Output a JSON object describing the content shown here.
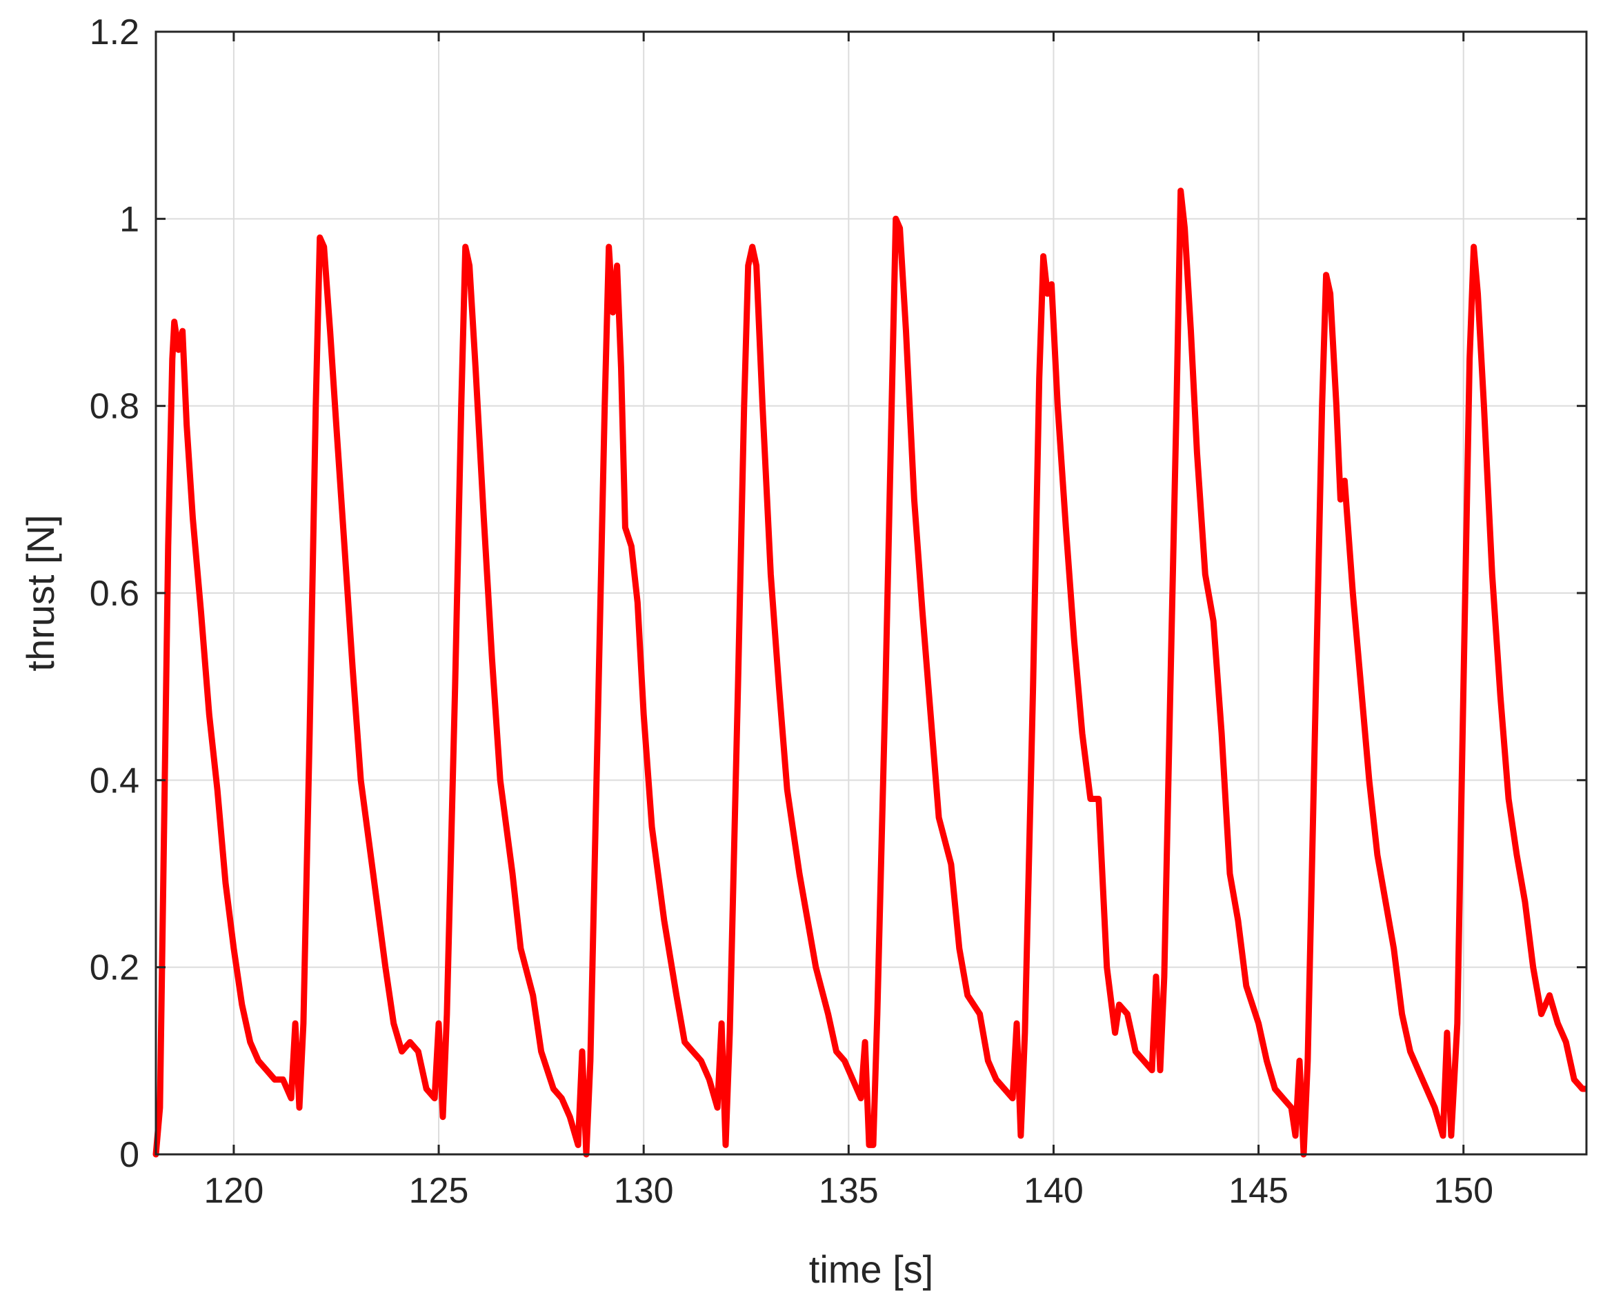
{
  "colors": {
    "series": "#ff0000",
    "grid": "#dcdcdc",
    "axis": "#262626",
    "background": "#ffffff"
  },
  "chart_data": {
    "type": "line",
    "title": "",
    "xlabel": "time [s]",
    "ylabel": "thrust [N]",
    "xlim": [
      118.1,
      153
    ],
    "ylim": [
      0,
      1.2
    ],
    "grid": true,
    "legend": "none",
    "x_ticks": [
      {
        "value": 120,
        "label": "120"
      },
      {
        "value": 125,
        "label": "125"
      },
      {
        "value": 130,
        "label": "130"
      },
      {
        "value": 135,
        "label": "135"
      },
      {
        "value": 140,
        "label": "140"
      },
      {
        "value": 145,
        "label": "145"
      },
      {
        "value": 150,
        "label": "150"
      }
    ],
    "y_ticks": [
      {
        "value": 0,
        "label": "0"
      },
      {
        "value": 0.2,
        "label": "0.2"
      },
      {
        "value": 0.4,
        "label": "0.4"
      },
      {
        "value": 0.6,
        "label": "0.6"
      },
      {
        "value": 0.8,
        "label": "0.8"
      },
      {
        "value": 1.0,
        "label": "1"
      },
      {
        "value": 1.2,
        "label": "1.2"
      }
    ],
    "series": [
      {
        "color": "#ff0000",
        "points": [
          [
            118.1,
            0.0
          ],
          [
            118.2,
            0.05
          ],
          [
            118.3,
            0.35
          ],
          [
            118.4,
            0.65
          ],
          [
            118.5,
            0.85
          ],
          [
            118.55,
            0.89
          ],
          [
            118.65,
            0.86
          ],
          [
            118.75,
            0.88
          ],
          [
            118.85,
            0.78
          ],
          [
            119.0,
            0.68
          ],
          [
            119.2,
            0.58
          ],
          [
            119.4,
            0.47
          ],
          [
            119.6,
            0.39
          ],
          [
            119.8,
            0.29
          ],
          [
            120.0,
            0.22
          ],
          [
            120.2,
            0.16
          ],
          [
            120.4,
            0.12
          ],
          [
            120.6,
            0.1
          ],
          [
            120.8,
            0.09
          ],
          [
            121.0,
            0.08
          ],
          [
            121.2,
            0.08
          ],
          [
            121.4,
            0.06
          ],
          [
            121.5,
            0.14
          ],
          [
            121.6,
            0.05
          ],
          [
            121.7,
            0.14
          ],
          [
            121.85,
            0.45
          ],
          [
            122.0,
            0.8
          ],
          [
            122.1,
            0.98
          ],
          [
            122.2,
            0.97
          ],
          [
            122.35,
            0.88
          ],
          [
            122.5,
            0.78
          ],
          [
            122.7,
            0.65
          ],
          [
            122.9,
            0.52
          ],
          [
            123.1,
            0.4
          ],
          [
            123.4,
            0.3
          ],
          [
            123.7,
            0.2
          ],
          [
            123.9,
            0.14
          ],
          [
            124.1,
            0.11
          ],
          [
            124.3,
            0.12
          ],
          [
            124.5,
            0.11
          ],
          [
            124.7,
            0.07
          ],
          [
            124.9,
            0.06
          ],
          [
            125.0,
            0.14
          ],
          [
            125.1,
            0.04
          ],
          [
            125.2,
            0.15
          ],
          [
            125.4,
            0.5
          ],
          [
            125.55,
            0.8
          ],
          [
            125.65,
            0.97
          ],
          [
            125.75,
            0.95
          ],
          [
            125.9,
            0.84
          ],
          [
            126.1,
            0.68
          ],
          [
            126.3,
            0.53
          ],
          [
            126.5,
            0.4
          ],
          [
            126.8,
            0.3
          ],
          [
            127.0,
            0.22
          ],
          [
            127.3,
            0.17
          ],
          [
            127.5,
            0.11
          ],
          [
            127.8,
            0.07
          ],
          [
            128.0,
            0.06
          ],
          [
            128.2,
            0.04
          ],
          [
            128.4,
            0.01
          ],
          [
            128.5,
            0.11
          ],
          [
            128.6,
            0.0
          ],
          [
            128.7,
            0.1
          ],
          [
            128.9,
            0.5
          ],
          [
            129.05,
            0.8
          ],
          [
            129.15,
            0.97
          ],
          [
            129.25,
            0.9
          ],
          [
            129.35,
            0.95
          ],
          [
            129.45,
            0.84
          ],
          [
            129.55,
            0.67
          ],
          [
            129.7,
            0.65
          ],
          [
            129.85,
            0.59
          ],
          [
            130.0,
            0.47
          ],
          [
            130.2,
            0.35
          ],
          [
            130.5,
            0.25
          ],
          [
            130.8,
            0.17
          ],
          [
            131.0,
            0.12
          ],
          [
            131.2,
            0.11
          ],
          [
            131.4,
            0.1
          ],
          [
            131.6,
            0.08
          ],
          [
            131.8,
            0.05
          ],
          [
            131.9,
            0.14
          ],
          [
            132.0,
            0.01
          ],
          [
            132.1,
            0.13
          ],
          [
            132.3,
            0.5
          ],
          [
            132.45,
            0.8
          ],
          [
            132.55,
            0.95
          ],
          [
            132.65,
            0.97
          ],
          [
            132.75,
            0.95
          ],
          [
            132.9,
            0.8
          ],
          [
            133.1,
            0.62
          ],
          [
            133.3,
            0.5
          ],
          [
            133.5,
            0.39
          ],
          [
            133.8,
            0.3
          ],
          [
            134.0,
            0.25
          ],
          [
            134.2,
            0.2
          ],
          [
            134.5,
            0.15
          ],
          [
            134.7,
            0.11
          ],
          [
            134.9,
            0.1
          ],
          [
            135.1,
            0.08
          ],
          [
            135.3,
            0.06
          ],
          [
            135.4,
            0.12
          ],
          [
            135.5,
            0.01
          ],
          [
            135.6,
            0.01
          ],
          [
            135.7,
            0.15
          ],
          [
            135.9,
            0.5
          ],
          [
            136.05,
            0.8
          ],
          [
            136.15,
            1.0
          ],
          [
            136.25,
            0.99
          ],
          [
            136.4,
            0.88
          ],
          [
            136.6,
            0.7
          ],
          [
            136.8,
            0.58
          ],
          [
            137.0,
            0.47
          ],
          [
            137.2,
            0.36
          ],
          [
            137.5,
            0.31
          ],
          [
            137.7,
            0.22
          ],
          [
            137.9,
            0.17
          ],
          [
            138.2,
            0.15
          ],
          [
            138.4,
            0.1
          ],
          [
            138.6,
            0.08
          ],
          [
            138.8,
            0.07
          ],
          [
            139.0,
            0.06
          ],
          [
            139.1,
            0.14
          ],
          [
            139.2,
            0.02
          ],
          [
            139.3,
            0.13
          ],
          [
            139.5,
            0.5
          ],
          [
            139.65,
            0.83
          ],
          [
            139.75,
            0.96
          ],
          [
            139.85,
            0.92
          ],
          [
            139.95,
            0.93
          ],
          [
            140.1,
            0.8
          ],
          [
            140.3,
            0.67
          ],
          [
            140.5,
            0.55
          ],
          [
            140.7,
            0.45
          ],
          [
            140.9,
            0.38
          ],
          [
            141.1,
            0.38
          ],
          [
            141.3,
            0.2
          ],
          [
            141.5,
            0.13
          ],
          [
            141.6,
            0.16
          ],
          [
            141.8,
            0.15
          ],
          [
            142.0,
            0.11
          ],
          [
            142.2,
            0.1
          ],
          [
            142.4,
            0.09
          ],
          [
            142.5,
            0.19
          ],
          [
            142.6,
            0.09
          ],
          [
            142.7,
            0.19
          ],
          [
            142.85,
            0.5
          ],
          [
            143.0,
            0.8
          ],
          [
            143.1,
            1.03
          ],
          [
            143.2,
            0.99
          ],
          [
            143.35,
            0.88
          ],
          [
            143.5,
            0.75
          ],
          [
            143.7,
            0.62
          ],
          [
            143.9,
            0.57
          ],
          [
            144.1,
            0.45
          ],
          [
            144.3,
            0.3
          ],
          [
            144.5,
            0.25
          ],
          [
            144.7,
            0.18
          ],
          [
            145.0,
            0.14
          ],
          [
            145.2,
            0.1
          ],
          [
            145.4,
            0.07
          ],
          [
            145.6,
            0.06
          ],
          [
            145.8,
            0.05
          ],
          [
            145.9,
            0.02
          ],
          [
            146.0,
            0.1
          ],
          [
            146.1,
            0.0
          ],
          [
            146.2,
            0.1
          ],
          [
            146.4,
            0.5
          ],
          [
            146.55,
            0.8
          ],
          [
            146.65,
            0.94
          ],
          [
            146.75,
            0.92
          ],
          [
            146.9,
            0.8
          ],
          [
            147.0,
            0.7
          ],
          [
            147.1,
            0.72
          ],
          [
            147.3,
            0.6
          ],
          [
            147.5,
            0.5
          ],
          [
            147.7,
            0.4
          ],
          [
            147.9,
            0.32
          ],
          [
            148.1,
            0.27
          ],
          [
            148.3,
            0.22
          ],
          [
            148.5,
            0.15
          ],
          [
            148.7,
            0.11
          ],
          [
            148.9,
            0.09
          ],
          [
            149.1,
            0.07
          ],
          [
            149.3,
            0.05
          ],
          [
            149.5,
            0.02
          ],
          [
            149.6,
            0.13
          ],
          [
            149.7,
            0.02
          ],
          [
            149.85,
            0.14
          ],
          [
            150.0,
            0.5
          ],
          [
            150.15,
            0.85
          ],
          [
            150.25,
            0.97
          ],
          [
            150.35,
            0.92
          ],
          [
            150.5,
            0.8
          ],
          [
            150.7,
            0.62
          ],
          [
            150.9,
            0.49
          ],
          [
            151.1,
            0.38
          ],
          [
            151.3,
            0.32
          ],
          [
            151.5,
            0.27
          ],
          [
            151.7,
            0.2
          ],
          [
            151.9,
            0.15
          ],
          [
            152.1,
            0.17
          ],
          [
            152.3,
            0.14
          ],
          [
            152.5,
            0.12
          ],
          [
            152.7,
            0.08
          ],
          [
            152.9,
            0.07
          ],
          [
            153.0,
            0.07
          ]
        ]
      }
    ]
  }
}
